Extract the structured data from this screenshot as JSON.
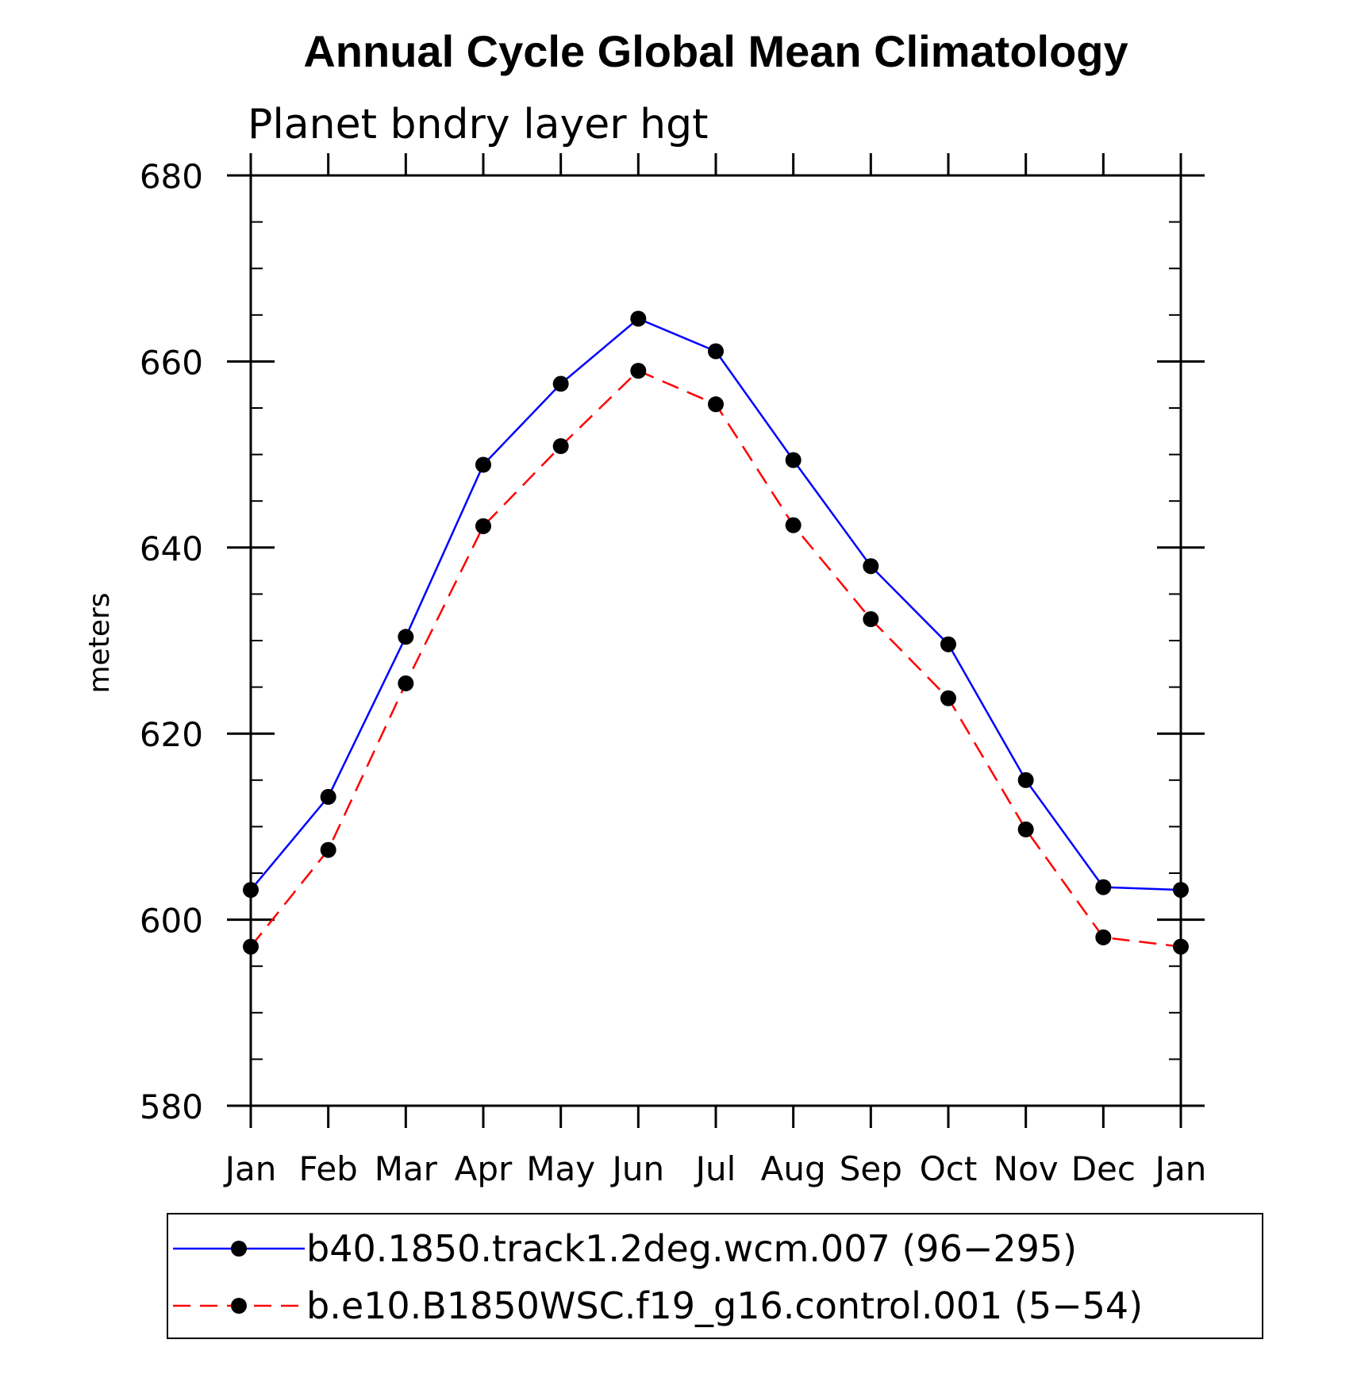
{
  "chart_data": {
    "type": "line",
    "title": "Annual Cycle Global Mean Climatology",
    "subtitle": "Planet bndry layer hgt",
    "ylabel": "meters",
    "xlabel": "",
    "categories": [
      "Jan",
      "Feb",
      "Mar",
      "Apr",
      "May",
      "Jun",
      "Jul",
      "Aug",
      "Sep",
      "Oct",
      "Nov",
      "Dec",
      "Jan"
    ],
    "ylim": [
      580,
      680
    ],
    "yticks": [
      580,
      600,
      620,
      640,
      660,
      680
    ],
    "series": [
      {
        "name": "b40.1850.track1.2deg.wcm.007 (96−295)",
        "color": "#0000ff",
        "dash": "solid",
        "values": [
          603.2,
          613.2,
          630.4,
          648.9,
          657.6,
          664.6,
          661.1,
          649.4,
          638.0,
          629.6,
          615.0,
          603.5,
          603.2
        ]
      },
      {
        "name": "b.e10.B1850WSC.f19_g16.control.001 (5−54)",
        "color": "#ff0000",
        "dash": "dashed",
        "values": [
          597.1,
          607.5,
          625.4,
          642.3,
          650.9,
          659.0,
          655.4,
          642.4,
          632.3,
          623.8,
          609.7,
          598.1,
          597.1
        ]
      }
    ],
    "legend_position": "bottom"
  }
}
